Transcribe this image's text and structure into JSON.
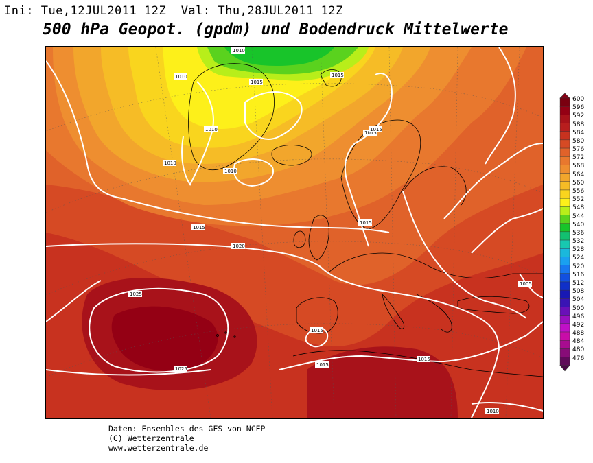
{
  "header": {
    "init_label": "Ini:",
    "init_value": "Tue,12JUL2011 12Z",
    "valid_label": "Val:",
    "valid_value": "Thu,28JUL2011 12Z"
  },
  "title": "500 hPa Geopot. (gpdm) und Bodendruck Mittelwerte",
  "legend": {
    "levels": [
      "600",
      "596",
      "592",
      "588",
      "584",
      "580",
      "576",
      "572",
      "568",
      "564",
      "560",
      "556",
      "552",
      "548",
      "544",
      "540",
      "536",
      "532",
      "528",
      "524",
      "520",
      "516",
      "512",
      "508",
      "504",
      "500",
      "496",
      "492",
      "488",
      "484",
      "480",
      "476"
    ],
    "colors": [
      "#7a0010",
      "#940014",
      "#a8121a",
      "#b81e1e",
      "#c8321f",
      "#d64a24",
      "#e0622a",
      "#e8782e",
      "#ee8e30",
      "#f2a62c",
      "#f6bc26",
      "#f9d51e",
      "#fdf01a",
      "#b8ee1a",
      "#5ad21e",
      "#18c42a",
      "#12c070",
      "#18c8b0",
      "#1ab8dc",
      "#1aa0f0",
      "#1878f0",
      "#1250e0",
      "#1030c8",
      "#1818b4",
      "#3a14b4",
      "#6a10b8",
      "#9a10c0",
      "#c010c8",
      "#c80ca8",
      "#a80c90",
      "#880c78",
      "#600a5a"
    ]
  },
  "isobars": [
    "1010",
    "1010",
    "1015",
    "1015",
    "1010",
    "1010",
    "1015",
    "1010",
    "1015",
    "1015",
    "1015",
    "1020",
    "1025",
    "1025",
    "1015",
    "1015",
    "1015",
    "1005",
    "1010"
  ],
  "credits": {
    "line1": "Daten: Ensembles des GFS von NCEP",
    "line2": "(C) Wetterzentrale",
    "line3": "www.wetterzentrale.de"
  }
}
